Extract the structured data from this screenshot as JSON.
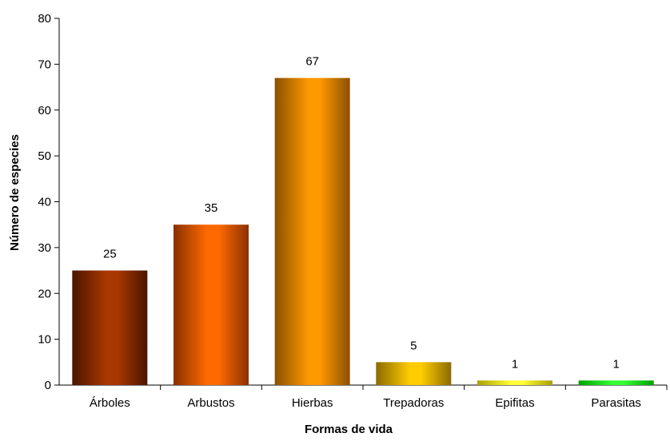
{
  "chart_data": {
    "type": "bar",
    "title": "",
    "xlabel": "Formas de vida",
    "ylabel": "Número de especies",
    "categories": [
      "Árboles",
      "Arbustos",
      "Hierbas",
      "Trepadoras",
      "Epifitas",
      "Parasitas"
    ],
    "values": [
      25,
      35,
      67,
      5,
      1,
      1
    ],
    "data_labels": [
      "25",
      "35",
      "67",
      "5",
      "1",
      "1"
    ],
    "ylim": [
      0,
      80
    ],
    "yticks": [
      0,
      10,
      20,
      30,
      40,
      50,
      60,
      70,
      80
    ],
    "ytick_labels": [
      "0",
      "10",
      "20",
      "30",
      "40",
      "50",
      "60",
      "70",
      "80"
    ],
    "grid": false,
    "legend": "none",
    "bar_colors": [
      {
        "edge": "#4a1400",
        "mid": "#a83800"
      },
      {
        "edge": "#8a3000",
        "mid": "#ff6a00"
      },
      {
        "edge": "#8a5000",
        "mid": "#ff9900"
      },
      {
        "edge": "#8a6a00",
        "mid": "#ffcc00"
      },
      {
        "edge": "#aaa000",
        "mid": "#ffff33"
      },
      {
        "edge": "#00a000",
        "mid": "#33ff33"
      }
    ]
  }
}
